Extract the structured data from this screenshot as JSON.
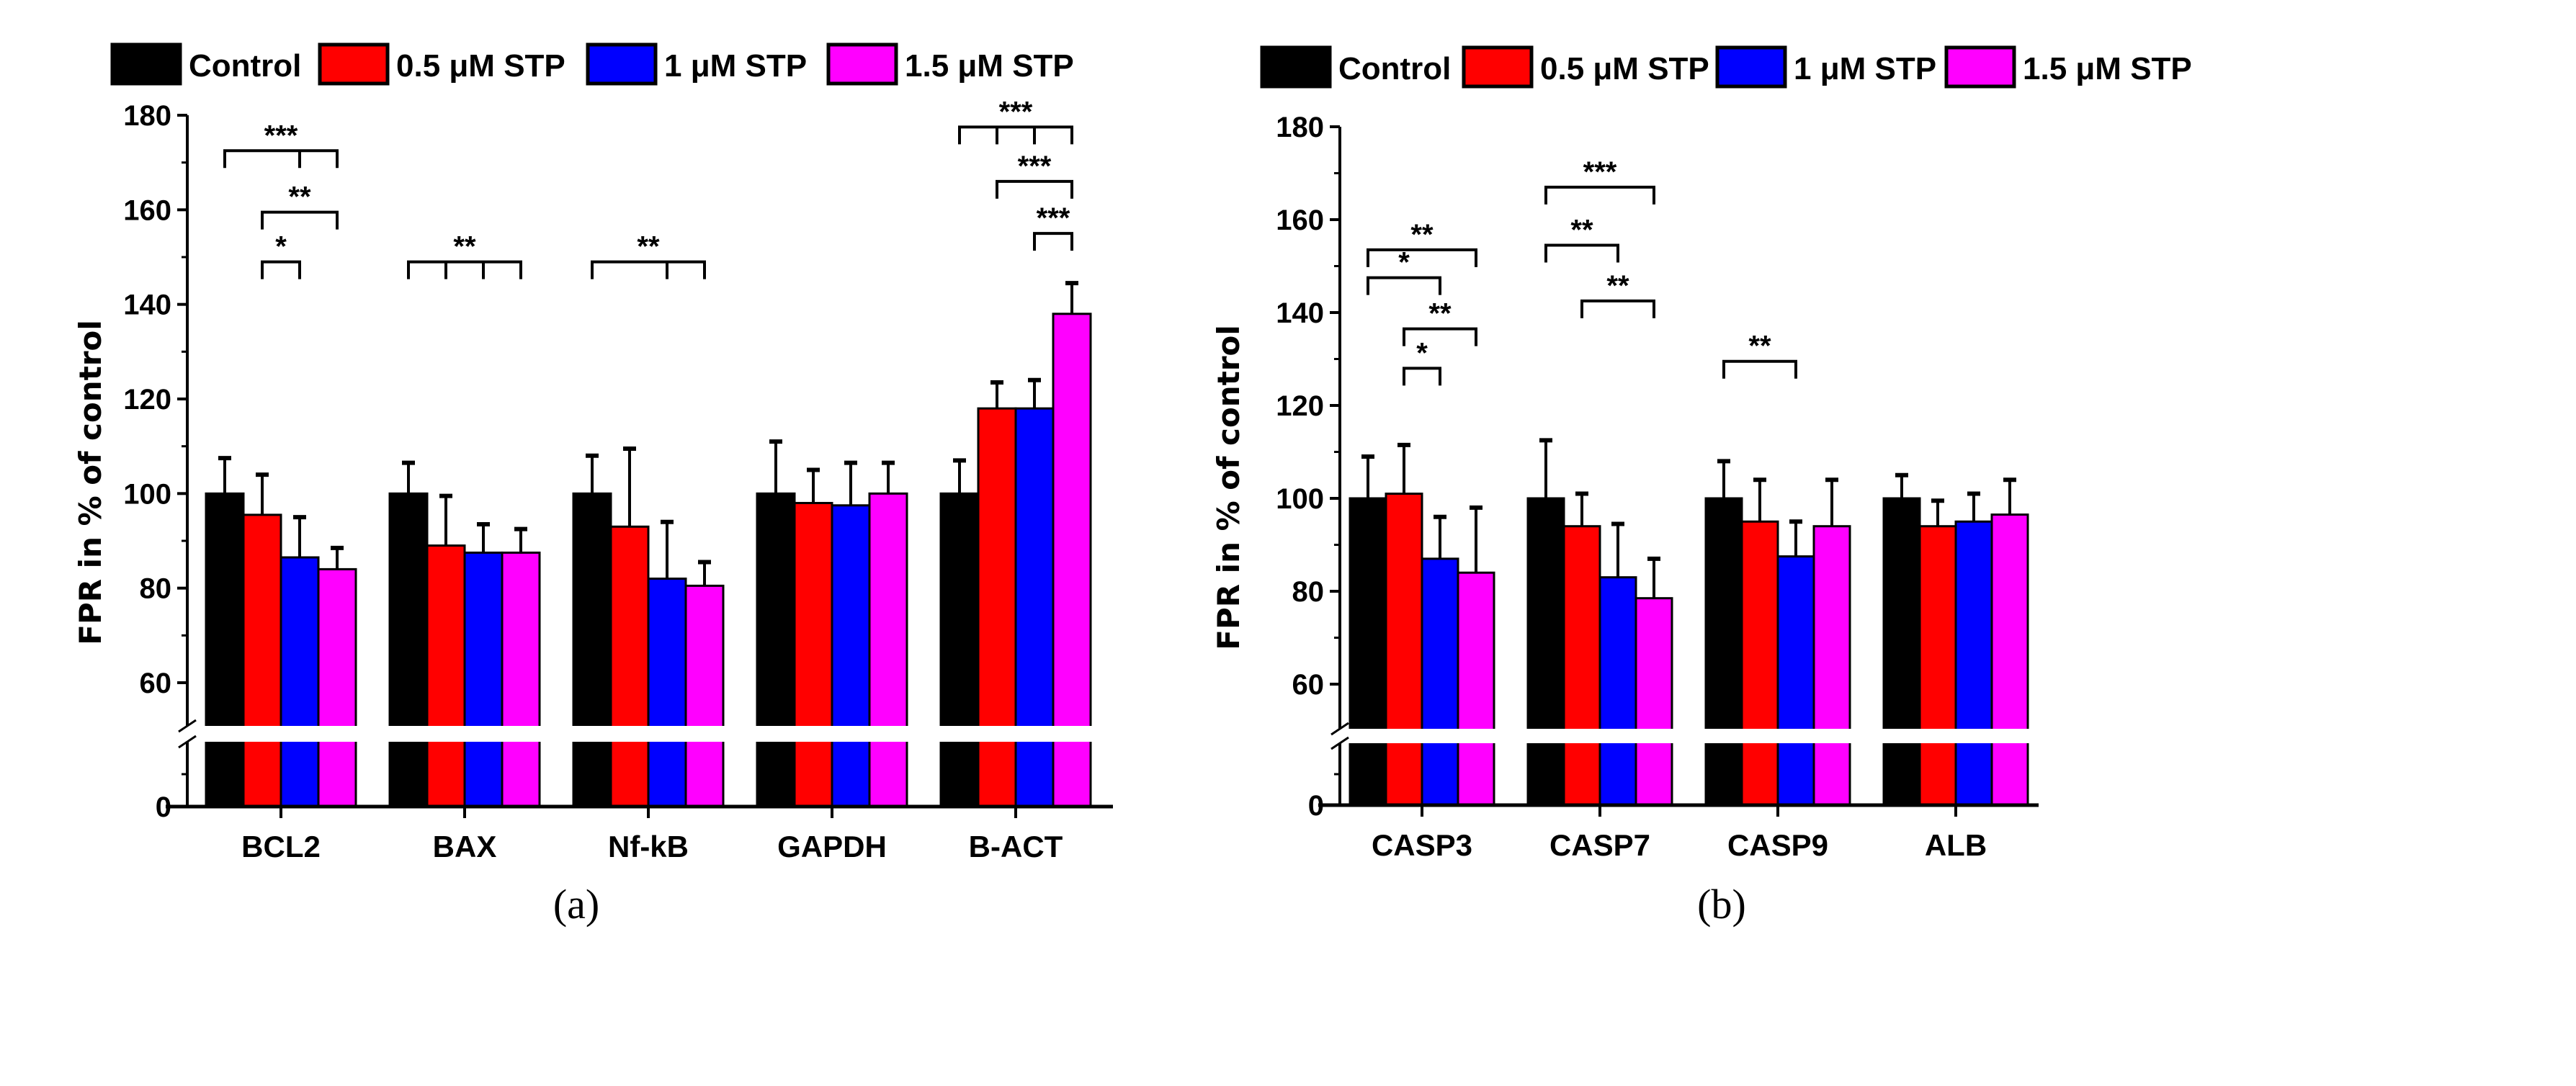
{
  "chart_data": [
    {
      "type": "bar",
      "panel_label": "(a)",
      "ylabel": "FPR in % of control",
      "xlabel": "",
      "ylim": [
        0,
        180
      ],
      "axis_break": [
        50,
        58
      ],
      "yticks": [
        "0",
        "60",
        "80",
        "100",
        "120",
        "140",
        "160",
        "180"
      ],
      "categories": [
        "BCL2",
        "BAX",
        "Nf-kB",
        "GAPDH",
        "B-ACT"
      ],
      "legend": [
        "Control",
        "0.5 μM STP",
        "1 μM STP",
        "1.5 μM STP"
      ],
      "legend_placement": "top",
      "colors": [
        "#000000",
        "#ff0000",
        "#0000ff",
        "#ff00ff"
      ],
      "series": [
        {
          "name": "Control",
          "values": [
            100,
            100,
            100,
            100,
            100
          ],
          "error_top": [
            107.5,
            106.5,
            108,
            111,
            107
          ]
        },
        {
          "name": "0.5 μM STP",
          "values": [
            95.5,
            89,
            93,
            98,
            118
          ],
          "error_top": [
            104,
            99.5,
            109.5,
            105,
            123.5
          ]
        },
        {
          "name": "1 μM STP",
          "values": [
            86.5,
            87.5,
            82,
            97.5,
            118
          ],
          "error_top": [
            95,
            93.5,
            94,
            106.5,
            124
          ]
        },
        {
          "name": "1.5 μM STP",
          "values": [
            84,
            87.5,
            80.5,
            100,
            138
          ],
          "error_top": [
            88.5,
            92.5,
            85.5,
            106.5,
            144.5
          ]
        }
      ],
      "significance": [
        {
          "group": 0,
          "from": 0,
          "to": 3,
          "ticks": [
            2
          ],
          "y": 172.5,
          "label": "***"
        },
        {
          "group": 0,
          "from": 1,
          "to": 3,
          "ticks": [],
          "y": 159.5,
          "label": "**"
        },
        {
          "group": 0,
          "from": 1,
          "to": 2,
          "ticks": [],
          "y": 149,
          "label": "*"
        },
        {
          "group": 1,
          "from": 0,
          "to": 3,
          "ticks": [
            1,
            2
          ],
          "y": 149,
          "label": "**"
        },
        {
          "group": 2,
          "from": 0,
          "to": 3,
          "ticks": [
            2
          ],
          "y": 149,
          "label": "**"
        },
        {
          "group": 4,
          "from": 0,
          "to": 3,
          "ticks": [
            1,
            2
          ],
          "y": 177.5,
          "label": "***"
        },
        {
          "group": 4,
          "from": 1,
          "to": 3,
          "ticks": [],
          "y": 166,
          "label": "***"
        },
        {
          "group": 4,
          "from": 2,
          "to": 3,
          "ticks": [],
          "y": 155,
          "label": "***"
        }
      ]
    },
    {
      "type": "bar",
      "panel_label": "(b)",
      "ylabel": "FPR in % of control",
      "xlabel": "",
      "ylim": [
        0,
        180
      ],
      "axis_break": [
        50,
        58
      ],
      "yticks": [
        "0",
        "60",
        "80",
        "100",
        "120",
        "140",
        "160",
        "180"
      ],
      "categories": [
        "CASP3",
        "CASP7",
        "CASP9",
        "ALB"
      ],
      "legend": [
        "Control",
        "0.5 μM STP",
        "1 μM STP",
        "1.5 μM STP"
      ],
      "legend_placement": "top",
      "colors": [
        "#000000",
        "#ff0000",
        "#0000ff",
        "#ff00ff"
      ],
      "series": [
        {
          "name": "Control",
          "values": [
            100,
            100,
            100,
            100
          ],
          "error_top": [
            109,
            112.5,
            108,
            105
          ]
        },
        {
          "name": "0.5 μM STP",
          "values": [
            101,
            94,
            95,
            94
          ],
          "error_top": [
            111.5,
            101,
            104,
            99.5
          ]
        },
        {
          "name": "1 μM STP",
          "values": [
            87,
            83,
            87.5,
            95
          ],
          "error_top": [
            96,
            94.5,
            95,
            101
          ]
        },
        {
          "name": "1.5 μM STP",
          "values": [
            84,
            78.5,
            94,
            96.5
          ],
          "error_top": [
            98,
            87,
            104,
            104
          ]
        }
      ],
      "significance": [
        {
          "group": 0,
          "from": 0,
          "to": 3,
          "ticks": [],
          "y": 153.5,
          "label": "**"
        },
        {
          "group": 0,
          "from": 0,
          "to": 2,
          "ticks": [],
          "y": 147.5,
          "label": "*"
        },
        {
          "group": 0,
          "from": 1,
          "to": 3,
          "ticks": [],
          "y": 136.5,
          "label": "**"
        },
        {
          "group": 0,
          "from": 1,
          "to": 2,
          "ticks": [],
          "y": 128,
          "label": "*"
        },
        {
          "group": 1,
          "from": 0,
          "to": 3,
          "ticks": [],
          "y": 167,
          "label": "***"
        },
        {
          "group": 1,
          "from": 0,
          "to": 2,
          "ticks": [],
          "y": 154.5,
          "label": "**"
        },
        {
          "group": 1,
          "from": 1,
          "to": 3,
          "ticks": [],
          "y": 142.5,
          "label": "**"
        },
        {
          "group": 2,
          "from": 0,
          "to": 2,
          "ticks": [],
          "y": 129.5,
          "label": "**"
        }
      ]
    }
  ]
}
